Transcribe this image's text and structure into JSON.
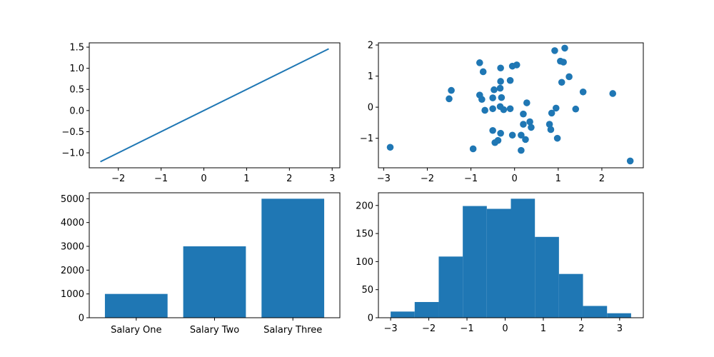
{
  "chart_data": [
    {
      "type": "line",
      "title": "",
      "xlabel": "",
      "ylabel": "",
      "xlim": [
        -2.68,
        3.18
      ],
      "ylim": [
        -1.354,
        1.602
      ],
      "xticks": [
        -2,
        -1,
        0,
        1,
        2,
        3
      ],
      "yticks": [
        -1.0,
        -0.5,
        0.0,
        0.5,
        1.0,
        1.5
      ],
      "xtick_labels": [
        "−2",
        "−1",
        "0",
        "1",
        "2",
        "3"
      ],
      "ytick_labels": [
        "−1.0",
        "−0.5",
        "0.0",
        "0.5",
        "1.0",
        "1.5"
      ],
      "color": "#1f77b4",
      "series": [
        {
          "x": [
            -2.42,
            2.92
          ],
          "y": [
            -1.21,
            1.46
          ]
        }
      ]
    },
    {
      "type": "scatter",
      "title": "",
      "xlabel": "",
      "ylabel": "",
      "xlim": [
        -3.12,
        2.95
      ],
      "ylim": [
        -1.95,
        2.07
      ],
      "xticks": [
        -3,
        -2,
        -1,
        0,
        1,
        2
      ],
      "yticks": [
        -1,
        0,
        1,
        2
      ],
      "xtick_labels": [
        "−3",
        "−2",
        "−1",
        "0",
        "1",
        "2"
      ],
      "ytick_labels": [
        "−1",
        "0",
        "1",
        "2"
      ],
      "color": "#1f77b4",
      "points": [
        [
          -2.85,
          -1.29
        ],
        [
          -1.5,
          0.27
        ],
        [
          -1.45,
          0.54
        ],
        [
          -0.95,
          -1.34
        ],
        [
          -0.8,
          1.43
        ],
        [
          -0.8,
          0.39
        ],
        [
          -0.75,
          0.25
        ],
        [
          -0.72,
          1.14
        ],
        [
          -0.68,
          -0.1
        ],
        [
          -0.5,
          0.3
        ],
        [
          -0.5,
          -0.75
        ],
        [
          -0.47,
          0.56
        ],
        [
          -0.45,
          -1.14
        ],
        [
          -0.5,
          -0.05
        ],
        [
          -0.38,
          -1.07
        ],
        [
          -0.33,
          0.02
        ],
        [
          -0.33,
          0.61
        ],
        [
          -0.32,
          0.83
        ],
        [
          -0.32,
          1.26
        ],
        [
          -0.32,
          -0.84
        ],
        [
          -0.3,
          0.31
        ],
        [
          -0.25,
          -0.08
        ],
        [
          -0.1,
          -0.05
        ],
        [
          -0.1,
          0.86
        ],
        [
          -0.05,
          1.32
        ],
        [
          -0.05,
          -0.9
        ],
        [
          0.05,
          1.36
        ],
        [
          0.15,
          -1.39
        ],
        [
          0.15,
          -0.9
        ],
        [
          0.2,
          -0.22
        ],
        [
          0.2,
          -0.55
        ],
        [
          0.25,
          -1.04
        ],
        [
          0.28,
          0.14
        ],
        [
          0.35,
          -0.47
        ],
        [
          0.38,
          -0.65
        ],
        [
          0.8,
          -0.55
        ],
        [
          0.83,
          -0.72
        ],
        [
          0.85,
          -0.19
        ],
        [
          0.92,
          1.82
        ],
        [
          0.95,
          -0.03
        ],
        [
          0.98,
          -1.0
        ],
        [
          1.05,
          1.48
        ],
        [
          1.08,
          0.8
        ],
        [
          1.12,
          1.45
        ],
        [
          1.15,
          1.9
        ],
        [
          1.25,
          0.98
        ],
        [
          1.4,
          -0.06
        ],
        [
          1.57,
          0.49
        ],
        [
          2.25,
          0.44
        ],
        [
          2.65,
          -1.73
        ]
      ]
    },
    {
      "type": "bar",
      "title": "",
      "xlabel": "",
      "ylabel": "",
      "ylim": [
        0,
        5250
      ],
      "yticks": [
        0,
        1000,
        2000,
        3000,
        4000,
        5000
      ],
      "ytick_labels": [
        "0",
        "1000",
        "2000",
        "3000",
        "4000",
        "5000"
      ],
      "color": "#1f77b4",
      "categories": [
        "Salary One",
        "Salary Two",
        "Salary Three"
      ],
      "values": [
        1000,
        3000,
        5000
      ]
    },
    {
      "type": "bar",
      "subtype": "histogram",
      "title": "",
      "xlabel": "",
      "ylabel": "",
      "xlim": [
        -3.32,
        3.62
      ],
      "ylim": [
        0,
        222.6
      ],
      "xticks": [
        -3,
        -2,
        -1,
        0,
        1,
        2,
        3
      ],
      "yticks": [
        0,
        50,
        100,
        150,
        200
      ],
      "xtick_labels": [
        "−3",
        "−2",
        "−1",
        "0",
        "1",
        "2",
        "3"
      ],
      "ytick_labels": [
        "0",
        "50",
        "100",
        "150",
        "200"
      ],
      "color": "#1f77b4",
      "bin_edges": [
        -3.0,
        -2.37,
        -1.74,
        -1.11,
        -0.48,
        0.15,
        0.78,
        1.41,
        2.04,
        2.67,
        3.3
      ],
      "counts": [
        11,
        28,
        109,
        199,
        194,
        212,
        144,
        78,
        21,
        8
      ]
    }
  ]
}
